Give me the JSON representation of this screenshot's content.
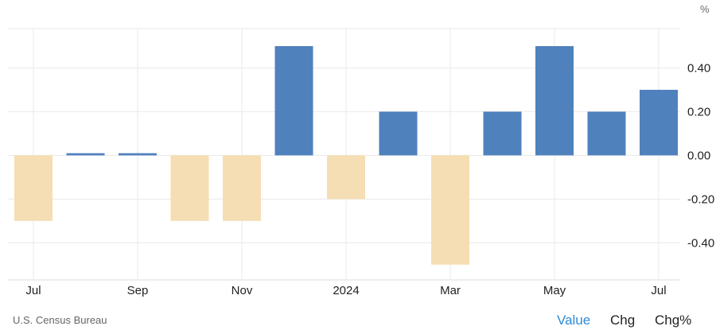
{
  "chart_data": {
    "type": "bar",
    "unit_label": "%",
    "categories": [
      "Jul",
      "Aug",
      "Sep",
      "Oct",
      "Nov",
      "Dec",
      "2024",
      "Feb",
      "Mar",
      "Apr",
      "May",
      "Jun",
      "Jul"
    ],
    "values": [
      -0.3,
      0.01,
      0.01,
      -0.3,
      -0.3,
      0.5,
      -0.2,
      0.2,
      -0.5,
      0.2,
      0.5,
      0.2,
      0.3
    ],
    "x_tick_labels": [
      "Jul",
      "Sep",
      "Nov",
      "2024",
      "Mar",
      "May",
      "Jul"
    ],
    "y_ticks": [
      "0.40",
      "0.20",
      "0.00",
      "-0.20",
      "-0.40"
    ],
    "y_tick_values": [
      0.4,
      0.2,
      0.0,
      -0.2,
      -0.4
    ],
    "ylim": [
      -0.57,
      0.58
    ],
    "grid": true,
    "colors": {
      "positive": "#4f81bd",
      "negative": "#f5deb3",
      "grid": "#e9e9e9"
    }
  },
  "footer": {
    "source": "U.S. Census Bureau",
    "tabs": [
      "Value",
      "Chg",
      "Chg%"
    ],
    "active_tab": "Value",
    "active_color": "#2e8bd6"
  }
}
